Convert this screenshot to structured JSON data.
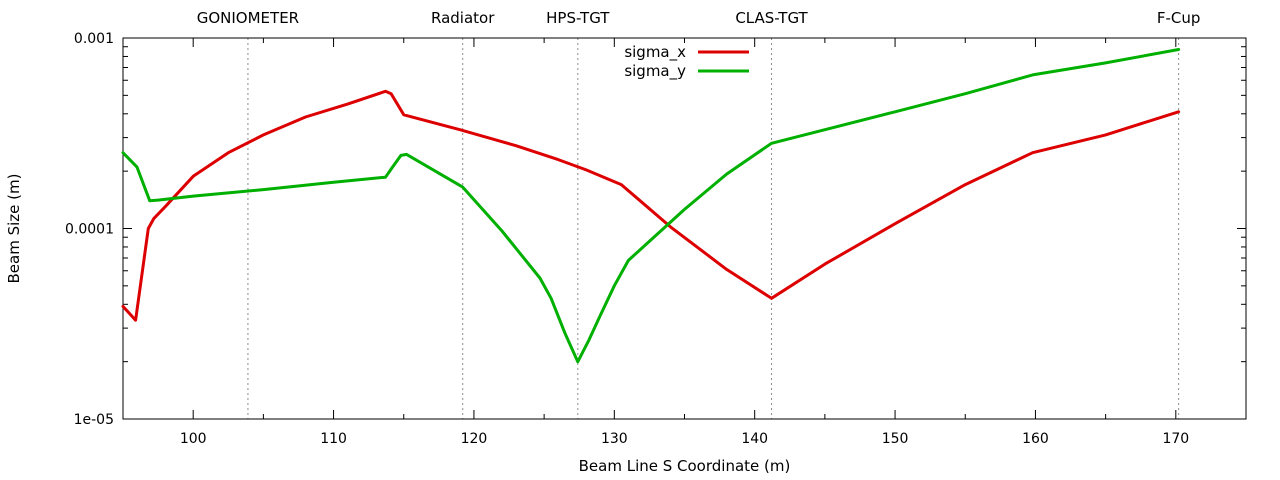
{
  "chart_data": {
    "type": "line",
    "xlabel": "Beam Line S Coordinate (m)",
    "ylabel": "Beam Size (m)",
    "x_scale": "linear",
    "y_scale": "log",
    "xlim": [
      95,
      175
    ],
    "ylim": [
      1e-05,
      0.001
    ],
    "x_ticks": [
      100,
      110,
      120,
      130,
      140,
      150,
      160,
      170
    ],
    "x_tick_labels": [
      "100",
      "110",
      "120",
      "130",
      "140",
      "150",
      "160",
      "170"
    ],
    "y_ticks": [
      1e-05,
      0.0001,
      0.001
    ],
    "y_tick_labels": [
      "1e-05",
      "0.0001",
      "0.001"
    ],
    "grid": false,
    "legend_position": "top-center",
    "markers": [
      {
        "label": "GONIOMETER",
        "x": 103.9
      },
      {
        "label": "Radiator",
        "x": 119.2
      },
      {
        "label": "HPS-TGT",
        "x": 127.4
      },
      {
        "label": "CLAS-TGT",
        "x": 141.2
      },
      {
        "label": "F-Cup",
        "x": 170.2
      }
    ],
    "series": [
      {
        "name": "sigma_x",
        "color": "#dd0000",
        "points": [
          [
            95.0,
            3.9e-05
          ],
          [
            95.9,
            3.3e-05
          ],
          [
            96.8,
            0.0001
          ],
          [
            97.2,
            0.000113
          ],
          [
            98.0,
            0.00013
          ],
          [
            100.0,
            0.000188
          ],
          [
            102.5,
            0.00025
          ],
          [
            105.0,
            0.00031
          ],
          [
            108.0,
            0.000385
          ],
          [
            111.0,
            0.00045
          ],
          [
            113.7,
            0.000525
          ],
          [
            114.1,
            0.00051
          ],
          [
            115.0,
            0.000395
          ],
          [
            119.0,
            0.00033
          ],
          [
            123.0,
            0.000272
          ],
          [
            126.0,
            0.00023
          ],
          [
            128.0,
            0.000203
          ],
          [
            130.5,
            0.00017
          ],
          [
            134.0,
            0.000102
          ],
          [
            138.0,
            6.1e-05
          ],
          [
            141.2,
            4.3e-05
          ],
          [
            145.0,
            6.5e-05
          ],
          [
            150.0,
            0.000106
          ],
          [
            155.0,
            0.00017
          ],
          [
            159.8,
            0.00025
          ],
          [
            165.0,
            0.00031
          ],
          [
            170.2,
            0.00041
          ]
        ]
      },
      {
        "name": "sigma_y",
        "color": "#00b000",
        "points": [
          [
            95.0,
            0.00025
          ],
          [
            96.0,
            0.00021
          ],
          [
            96.9,
            0.00014
          ],
          [
            97.5,
            0.000141
          ],
          [
            100.0,
            0.000148
          ],
          [
            105.0,
            0.00016
          ],
          [
            110.0,
            0.000175
          ],
          [
            113.7,
            0.000186
          ],
          [
            114.2,
            0.00021
          ],
          [
            114.8,
            0.000242
          ],
          [
            115.2,
            0.000245
          ],
          [
            119.2,
            0.000165
          ],
          [
            122.0,
            9.7e-05
          ],
          [
            124.7,
            5.5e-05
          ],
          [
            125.5,
            4.3e-05
          ],
          [
            126.5,
            2.8e-05
          ],
          [
            127.4,
            2e-05
          ],
          [
            128.2,
            2.6e-05
          ],
          [
            129.0,
            3.5e-05
          ],
          [
            130.0,
            5e-05
          ],
          [
            131.0,
            6.8e-05
          ],
          [
            135.0,
            0.000126
          ],
          [
            138.0,
            0.000193
          ],
          [
            141.2,
            0.00028
          ],
          [
            145.0,
            0.00033
          ],
          [
            150.0,
            0.00041
          ],
          [
            155.0,
            0.00051
          ],
          [
            159.8,
            0.00064
          ],
          [
            165.0,
            0.00074
          ],
          [
            170.2,
            0.00087
          ]
        ]
      }
    ]
  }
}
